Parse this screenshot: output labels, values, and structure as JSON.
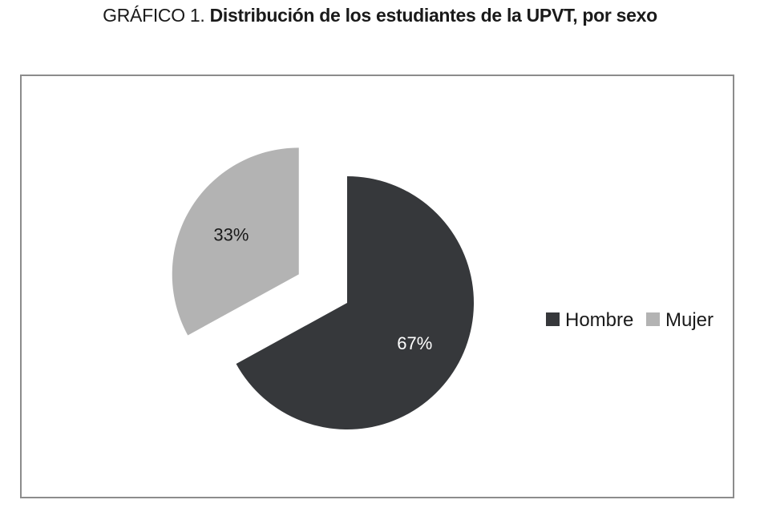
{
  "title_prefix": "GRÁFICO 1.",
  "title_text": "Distribución de los estudiantes de la UPVT, por sexo",
  "chart_data": {
    "type": "pie",
    "title": "GRÁFICO 1. Distribución de los estudiantes de la UPVT, por sexo",
    "categories": [
      "Hombre",
      "Mujer"
    ],
    "values": [
      67,
      33
    ],
    "labels": [
      "67%",
      "33%"
    ],
    "exploded": true,
    "legend_position": "right",
    "colors": [
      "#36383b",
      "#b3b3b3"
    ],
    "label_colors": [
      "#ffffff",
      "#1a1a1a"
    ]
  }
}
